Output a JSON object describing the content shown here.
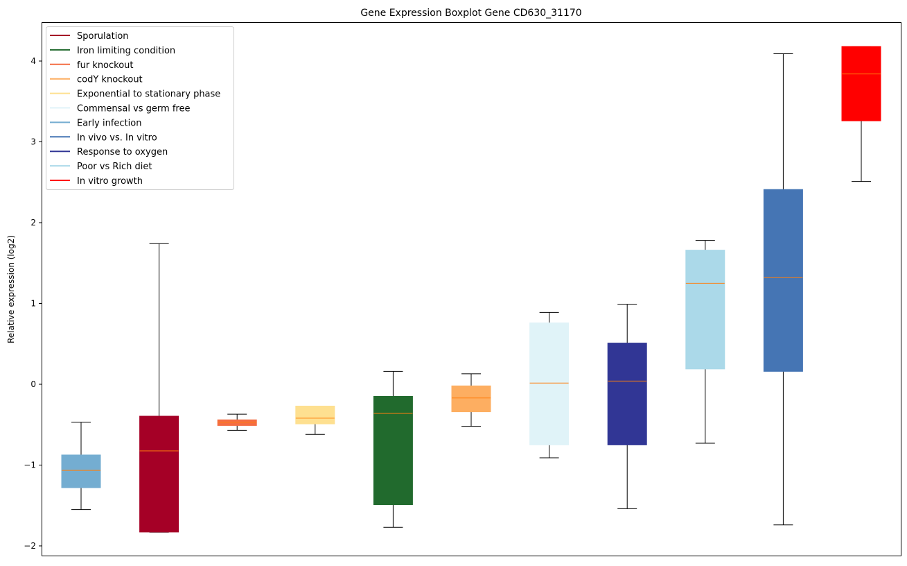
{
  "chart_data": {
    "type": "box",
    "title": "Gene Expression Boxplot Gene CD630_31170",
    "xlabel": "",
    "ylabel": "Relative expression (log2)",
    "ylim": [
      -2.1,
      4.45
    ],
    "yticks": [
      -2,
      -1,
      0,
      1,
      2,
      3,
      4
    ],
    "ytick_labels": [
      "−2",
      "−1",
      "0",
      "1",
      "2",
      "3",
      "4"
    ],
    "legend_position": "top-left",
    "legend": [
      {
        "label": "Sporulation",
        "color": "#a50026"
      },
      {
        "label": "Iron limiting condition",
        "color": "#216a2d"
      },
      {
        "label": "fur knockout",
        "color": "#f46d43"
      },
      {
        "label": "codY knockout",
        "color": "#fdae61"
      },
      {
        "label": "Exponential to stationary phase",
        "color": "#fee090"
      },
      {
        "label": "Commensal vs germ free",
        "color": "#e0f3f8"
      },
      {
        "label": "Early infection",
        "color": "#74add1"
      },
      {
        "label": "In vivo vs. In vitro",
        "color": "#4575b4"
      },
      {
        "label": "Response to oxygen",
        "color": "#313695"
      },
      {
        "label": "Poor vs Rich diet",
        "color": "#abd9e9"
      },
      {
        "label": "In vitro growth",
        "color": "#ff0000"
      }
    ],
    "boxes": [
      {
        "name": "Early infection",
        "color": "#74add1",
        "whislo": -1.55,
        "q1": -1.28,
        "med": -1.065,
        "q3": -0.875,
        "whishi": -0.47
      },
      {
        "name": "Sporulation",
        "color": "#a50026",
        "whislo": -1.83,
        "q1": -1.828,
        "med": -0.824,
        "q3": -0.395,
        "whishi": 1.74
      },
      {
        "name": "fur knockout",
        "color": "#f46d43",
        "whislo": -0.57,
        "q1": -0.51,
        "med": -0.47,
        "q3": -0.44,
        "whishi": -0.37
      },
      {
        "name": "Exponential to stationary phase",
        "color": "#fee090",
        "whislo": -0.62,
        "q1": -0.49,
        "med": -0.42,
        "q3": -0.27,
        "whishi": -0.27
      },
      {
        "name": "Iron limiting condition",
        "color": "#216a2d",
        "whislo": -1.77,
        "q1": -1.49,
        "med": -0.36,
        "q3": -0.15,
        "whishi": 0.16
      },
      {
        "name": "codY knockout",
        "color": "#fdae61",
        "whislo": -0.52,
        "q1": -0.34,
        "med": -0.17,
        "q3": -0.02,
        "whishi": 0.13
      },
      {
        "name": "Commensal vs germ free",
        "color": "#e0f3f8",
        "whislo": -0.91,
        "q1": -0.75,
        "med": 0.015,
        "q3": 0.76,
        "whishi": 0.89
      },
      {
        "name": "Response to oxygen",
        "color": "#313695",
        "whislo": -1.54,
        "q1": -0.75,
        "med": 0.04,
        "q3": 0.51,
        "whishi": 0.99
      },
      {
        "name": "Poor vs Rich diet",
        "color": "#abd9e9",
        "whislo": -0.73,
        "q1": 0.19,
        "med": 1.25,
        "q3": 1.66,
        "whishi": 1.78
      },
      {
        "name": "In vivo vs. In vitro",
        "color": "#4575b4",
        "whislo": -1.74,
        "q1": 0.16,
        "med": 1.32,
        "q3": 2.41,
        "whishi": 4.09
      },
      {
        "name": "In vitro growth",
        "color": "#ff0000",
        "whislo": 2.51,
        "q1": 3.26,
        "med": 3.84,
        "q3": 4.18,
        "whishi": 4.18
      }
    ]
  }
}
